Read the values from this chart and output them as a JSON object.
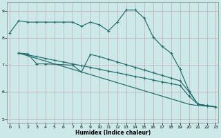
{
  "bg_color": "#cce8e8",
  "line_color": "#2a7070",
  "xlabel": "Humidex (Indice chaleur)",
  "ylim": [
    4.85,
    9.35
  ],
  "xlim": [
    -0.3,
    23.3
  ],
  "yticks": [
    5,
    6,
    7,
    8,
    9
  ],
  "xticks": [
    0,
    1,
    2,
    3,
    4,
    5,
    6,
    7,
    8,
    9,
    10,
    11,
    12,
    13,
    14,
    15,
    16,
    17,
    18,
    19,
    20,
    21,
    22,
    23
  ],
  "line1_x": [
    0,
    1,
    2,
    3,
    4,
    5,
    6,
    7,
    8,
    9,
    10,
    11,
    12,
    13,
    14,
    15,
    16,
    17,
    18,
    19,
    20,
    21,
    22,
    23
  ],
  "line1_y": [
    8.2,
    8.65,
    8.6,
    8.6,
    8.6,
    8.6,
    8.6,
    8.6,
    8.45,
    8.6,
    8.5,
    8.28,
    8.6,
    9.05,
    9.05,
    8.75,
    8.05,
    7.7,
    7.45,
    6.85,
    6.05,
    5.55,
    5.5,
    5.45
  ],
  "line2_x": [
    1,
    2,
    3,
    4,
    7,
    8,
    9,
    10,
    11,
    12,
    13,
    14,
    15,
    16,
    17,
    18,
    19,
    20,
    21,
    22,
    23
  ],
  "line2_y": [
    7.45,
    7.42,
    7.05,
    7.05,
    7.0,
    6.75,
    7.4,
    7.32,
    7.22,
    7.12,
    7.02,
    6.92,
    6.82,
    6.72,
    6.62,
    6.52,
    6.42,
    6.02,
    5.55,
    5.5,
    5.45
  ],
  "line3_x": [
    1,
    2,
    3,
    4,
    5,
    6,
    7,
    8,
    9,
    10,
    11,
    12,
    13,
    14,
    15,
    16,
    17,
    18,
    19,
    20,
    21,
    22,
    23
  ],
  "line3_y": [
    7.45,
    7.38,
    7.32,
    7.25,
    7.18,
    7.12,
    7.05,
    6.98,
    6.92,
    6.85,
    6.78,
    6.72,
    6.65,
    6.58,
    6.52,
    6.45,
    6.38,
    6.32,
    6.25,
    5.85,
    5.55,
    5.5,
    5.45
  ],
  "line4_x": [
    1,
    2,
    3,
    4,
    5,
    6,
    7,
    8,
    9,
    10,
    11,
    12,
    13,
    14,
    15,
    16,
    17,
    18,
    19,
    20,
    21,
    22,
    23
  ],
  "line4_y": [
    7.45,
    7.35,
    7.25,
    7.15,
    7.05,
    6.95,
    6.85,
    6.75,
    6.65,
    6.55,
    6.45,
    6.35,
    6.25,
    6.15,
    6.05,
    5.95,
    5.85,
    5.75,
    5.65,
    5.55,
    5.5,
    5.48,
    5.45
  ]
}
